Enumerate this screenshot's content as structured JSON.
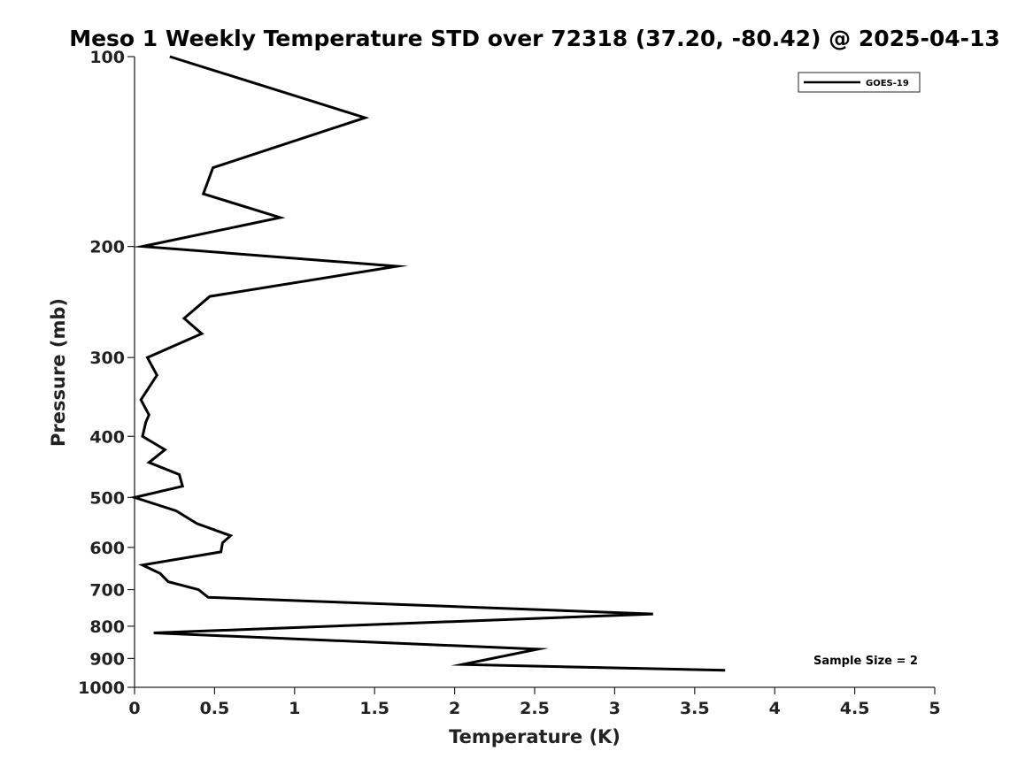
{
  "chart_data": {
    "type": "line",
    "title": "Meso 1 Weekly Temperature STD over 72318 (37.20, -80.42) @ 2025-04-13",
    "xlabel": "Temperature (K)",
    "ylabel": "Pressure (mb)",
    "xlim": [
      0,
      5
    ],
    "ylim": [
      100,
      1000
    ],
    "y_scale": "log",
    "y_reversed": true,
    "grid": false,
    "legend_position": "top-right",
    "x_ticks": [
      0,
      0.5,
      1,
      1.5,
      2,
      2.5,
      3,
      3.5,
      4,
      4.5,
      5
    ],
    "x_tick_labels": [
      "0",
      "0.5",
      "1",
      "1.5",
      "2",
      "2.5",
      "3",
      "3.5",
      "4",
      "4.5",
      "5"
    ],
    "y_ticks": [
      100,
      200,
      300,
      400,
      500,
      600,
      700,
      800,
      900,
      1000
    ],
    "y_tick_labels": [
      "100",
      "200",
      "300",
      "400",
      "500",
      "600",
      "700",
      "800",
      "900",
      "1000"
    ],
    "series": [
      {
        "name": "GOES-19",
        "color": "#000000",
        "points": [
          {
            "x": 0.22,
            "p": 100
          },
          {
            "x": 1.44,
            "p": 125
          },
          {
            "x": 0.49,
            "p": 150
          },
          {
            "x": 0.43,
            "p": 165
          },
          {
            "x": 0.91,
            "p": 180
          },
          {
            "x": 0.05,
            "p": 200
          },
          {
            "x": 1.64,
            "p": 215
          },
          {
            "x": 0.47,
            "p": 240
          },
          {
            "x": 0.31,
            "p": 260
          },
          {
            "x": 0.42,
            "p": 275
          },
          {
            "x": 0.08,
            "p": 300
          },
          {
            "x": 0.14,
            "p": 320
          },
          {
            "x": 0.04,
            "p": 350
          },
          {
            "x": 0.09,
            "p": 370
          },
          {
            "x": 0.07,
            "p": 380
          },
          {
            "x": 0.05,
            "p": 400
          },
          {
            "x": 0.19,
            "p": 420
          },
          {
            "x": 0.09,
            "p": 440
          },
          {
            "x": 0.28,
            "p": 460
          },
          {
            "x": 0.3,
            "p": 480
          },
          {
            "x": 0.0,
            "p": 500
          },
          {
            "x": 0.26,
            "p": 525
          },
          {
            "x": 0.39,
            "p": 550
          },
          {
            "x": 0.6,
            "p": 575
          },
          {
            "x": 0.55,
            "p": 590
          },
          {
            "x": 0.54,
            "p": 610
          },
          {
            "x": 0.05,
            "p": 640
          },
          {
            "x": 0.16,
            "p": 660
          },
          {
            "x": 0.21,
            "p": 680
          },
          {
            "x": 0.4,
            "p": 700
          },
          {
            "x": 0.46,
            "p": 720
          },
          {
            "x": 3.24,
            "p": 765
          },
          {
            "x": 0.12,
            "p": 820
          },
          {
            "x": 2.52,
            "p": 870
          },
          {
            "x": 2.05,
            "p": 920
          },
          {
            "x": 3.69,
            "p": 940
          }
        ]
      }
    ],
    "annotations": [
      {
        "text": "Sample Size = 2",
        "position": "bottom-right"
      }
    ]
  }
}
